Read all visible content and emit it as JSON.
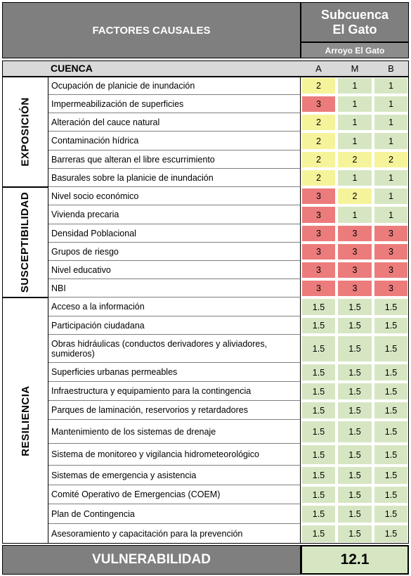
{
  "header": {
    "factors_title": "FACTORES CAUSALES",
    "subcuenca_line1": "Subcuenca",
    "subcuenca_line2": "El Gato",
    "arroyo": "Arroyo El Gato"
  },
  "cuenca": {
    "label": "CUENCA",
    "columns": [
      "A",
      "M",
      "B"
    ]
  },
  "categories": {
    "exposicion": "EXPOSICIÓN",
    "susceptibilidad": "SUSCEPTIBILIDAD",
    "resiliencia": "RESILIENCIA"
  },
  "rows": [
    {
      "factor": "Ocupación de planicie de inundación",
      "a": "2",
      "m": "1",
      "b": "1"
    },
    {
      "factor": "Impermeabilización de superficies",
      "a": "3",
      "m": "1",
      "b": "1"
    },
    {
      "factor": "Alteración del cauce natural",
      "a": "2",
      "m": "1",
      "b": "1"
    },
    {
      "factor": "Contaminación hídrica",
      "a": "2",
      "m": "1",
      "b": "1"
    },
    {
      "factor": "Barreras que alteran el libre escurrimiento",
      "a": "2",
      "m": "2",
      "b": "2"
    },
    {
      "factor": "Basurales sobre la planicie de inundación",
      "a": "2",
      "m": "1",
      "b": "1"
    },
    {
      "factor": "Nivel socio económico",
      "a": "3",
      "m": "2",
      "b": "1"
    },
    {
      "factor": "Vivienda precaria",
      "a": "3",
      "m": "1",
      "b": "1"
    },
    {
      "factor": "Densidad Poblacional",
      "a": "3",
      "m": "3",
      "b": "3"
    },
    {
      "factor": "Grupos de riesgo",
      "a": "3",
      "m": "3",
      "b": "3"
    },
    {
      "factor": "Nivel educativo",
      "a": "3",
      "m": "3",
      "b": "3"
    },
    {
      "factor": "NBI",
      "a": "3",
      "m": "3",
      "b": "3"
    },
    {
      "factor": "Acceso a la información",
      "a": "1.5",
      "m": "1.5",
      "b": "1.5"
    },
    {
      "factor": "Participación ciudadana",
      "a": "1.5",
      "m": "1.5",
      "b": "1.5"
    },
    {
      "factor": "Obras hidráulicas (conductos derivadores y aliviadores, sumideros)",
      "a": "1.5",
      "m": "1.5",
      "b": "1.5"
    },
    {
      "factor": "Superficies urbanas permeables",
      "a": "1.5",
      "m": "1.5",
      "b": "1.5"
    },
    {
      "factor": "Infraestructura y equipamiento para la contingencia",
      "a": "1.5",
      "m": "1.5",
      "b": "1.5"
    },
    {
      "factor": "Parques de laminación, reservorios y retardadores",
      "a": "1.5",
      "m": "1.5",
      "b": "1.5"
    },
    {
      "factor": "Mantenimiento de los sistemas de drenaje",
      "a": "1.5",
      "m": "1.5",
      "b": "1.5"
    },
    {
      "factor": "Sistema de monitoreo y vigilancia hidrometeorológico",
      "a": "1.5",
      "m": "1.5",
      "b": "1.5"
    },
    {
      "factor": "Sistemas de emergencia y asistencia",
      "a": "1.5",
      "m": "1.5",
      "b": "1.5"
    },
    {
      "factor": "Comité Operativo de Emergencias (COEM)",
      "a": "1.5",
      "m": "1.5",
      "b": "1.5"
    },
    {
      "factor": "Plan de Contingencia",
      "a": "1.5",
      "m": "1.5",
      "b": "1.5"
    },
    {
      "factor": "Asesoramiento y capacitación para la prevención",
      "a": "1.5",
      "m": "1.5",
      "b": "1.5"
    }
  ],
  "footer": {
    "label": "VULNERABILIDAD",
    "value": "12.1"
  },
  "colors": {
    "header_gray": "#7f7f7f",
    "level_1_green": "#d6e6c2",
    "level_2_yellow": "#f6f49a",
    "level_3_red": "#ec7c7c"
  }
}
